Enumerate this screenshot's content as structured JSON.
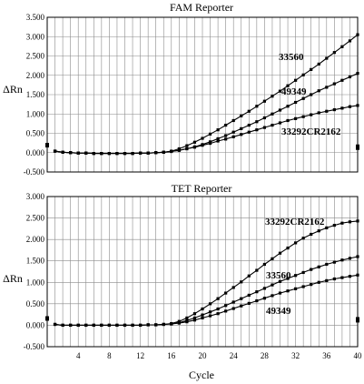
{
  "chart_data": [
    {
      "type": "line",
      "title": "FAM Reporter",
      "xlabel": "",
      "ylabel": "ΔRn",
      "xlim": [
        0,
        40
      ],
      "ylim": [
        -0.5,
        3.5
      ],
      "yticks": [
        "3.500",
        "3.000",
        "2.500",
        "2.000",
        "1.500",
        "1.000",
        "0.500",
        "0.000",
        "-0.500"
      ],
      "xticks": [],
      "grid": true,
      "series": [
        {
          "name": "33560",
          "x": [
            1,
            2,
            3,
            4,
            5,
            6,
            7,
            8,
            9,
            10,
            11,
            12,
            13,
            14,
            15,
            16,
            17,
            18,
            19,
            20,
            21,
            22,
            23,
            24,
            25,
            26,
            27,
            28,
            29,
            30,
            31,
            32,
            33,
            34,
            35,
            36,
            37,
            38,
            39,
            40
          ],
          "values": [
            0.04,
            0.01,
            0.0,
            -0.01,
            -0.01,
            -0.02,
            -0.02,
            -0.02,
            -0.02,
            -0.02,
            -0.02,
            -0.01,
            -0.01,
            0.0,
            0.01,
            0.04,
            0.1,
            0.18,
            0.27,
            0.37,
            0.48,
            0.59,
            0.71,
            0.83,
            0.95,
            1.07,
            1.2,
            1.33,
            1.46,
            1.59,
            1.73,
            1.87,
            2.01,
            2.15,
            2.29,
            2.44,
            2.59,
            2.74,
            2.89,
            3.05
          ]
        },
        {
          "name": "49349",
          "x": [
            1,
            2,
            3,
            4,
            5,
            6,
            7,
            8,
            9,
            10,
            11,
            12,
            13,
            14,
            15,
            16,
            17,
            18,
            19,
            20,
            21,
            22,
            23,
            24,
            25,
            26,
            27,
            28,
            29,
            30,
            31,
            32,
            33,
            34,
            35,
            36,
            37,
            38,
            39,
            40
          ],
          "values": [
            0.04,
            0.01,
            0.0,
            -0.01,
            -0.01,
            -0.02,
            -0.02,
            -0.02,
            -0.02,
            -0.02,
            -0.02,
            -0.01,
            -0.01,
            0.0,
            0.01,
            0.03,
            0.06,
            0.1,
            0.15,
            0.21,
            0.28,
            0.36,
            0.44,
            0.53,
            0.62,
            0.71,
            0.8,
            0.9,
            1.0,
            1.1,
            1.2,
            1.3,
            1.4,
            1.5,
            1.6,
            1.69,
            1.78,
            1.87,
            1.96,
            2.05
          ]
        },
        {
          "name": "33292CR2162",
          "x": [
            1,
            2,
            3,
            4,
            5,
            6,
            7,
            8,
            9,
            10,
            11,
            12,
            13,
            14,
            15,
            16,
            17,
            18,
            19,
            20,
            21,
            22,
            23,
            24,
            25,
            26,
            27,
            28,
            29,
            30,
            31,
            32,
            33,
            34,
            35,
            36,
            37,
            38,
            39,
            40
          ],
          "values": [
            0.04,
            0.01,
            0.0,
            -0.01,
            -0.01,
            -0.02,
            -0.02,
            -0.02,
            -0.02,
            -0.02,
            -0.02,
            -0.01,
            -0.01,
            0.0,
            0.01,
            0.03,
            0.06,
            0.1,
            0.14,
            0.19,
            0.24,
            0.3,
            0.35,
            0.41,
            0.47,
            0.53,
            0.59,
            0.65,
            0.71,
            0.77,
            0.83,
            0.88,
            0.93,
            0.98,
            1.03,
            1.07,
            1.11,
            1.15,
            1.19,
            1.22
          ]
        }
      ],
      "annotations": [
        "33560",
        "49349",
        "33292CR2162"
      ]
    },
    {
      "type": "line",
      "title": "TET Reporter",
      "xlabel": "Cycle",
      "ylabel": "ΔRn",
      "xlim": [
        0,
        40
      ],
      "ylim": [
        -0.5,
        3.0
      ],
      "yticks": [
        "3.000",
        "2.500",
        "2.000",
        "1.500",
        "1.000",
        "0.500",
        "0.000",
        "-0.500"
      ],
      "xticks": [
        "4",
        "8",
        "12",
        "16",
        "20",
        "24",
        "28",
        "32",
        "36",
        "40"
      ],
      "grid": true,
      "series": [
        {
          "name": "33292CR2162",
          "x": [
            1,
            2,
            3,
            4,
            5,
            6,
            7,
            8,
            9,
            10,
            11,
            12,
            13,
            14,
            15,
            16,
            17,
            18,
            19,
            20,
            21,
            22,
            23,
            24,
            25,
            26,
            27,
            28,
            29,
            30,
            31,
            32,
            33,
            34,
            35,
            36,
            37,
            38,
            39,
            40
          ],
          "values": [
            0.02,
            0.0,
            0.0,
            0.0,
            0.0,
            0.0,
            0.0,
            0.0,
            0.0,
            0.0,
            0.0,
            0.0,
            0.01,
            0.01,
            0.02,
            0.04,
            0.09,
            0.17,
            0.27,
            0.38,
            0.5,
            0.62,
            0.75,
            0.88,
            1.01,
            1.15,
            1.28,
            1.42,
            1.55,
            1.68,
            1.8,
            1.92,
            2.03,
            2.12,
            2.2,
            2.27,
            2.33,
            2.38,
            2.41,
            2.43
          ]
        },
        {
          "name": "33560",
          "x": [
            1,
            2,
            3,
            4,
            5,
            6,
            7,
            8,
            9,
            10,
            11,
            12,
            13,
            14,
            15,
            16,
            17,
            18,
            19,
            20,
            21,
            22,
            23,
            24,
            25,
            26,
            27,
            28,
            29,
            30,
            31,
            32,
            33,
            34,
            35,
            36,
            37,
            38,
            39,
            40
          ],
          "values": [
            0.02,
            0.0,
            0.0,
            0.0,
            0.0,
            0.0,
            0.0,
            0.0,
            0.0,
            0.0,
            0.0,
            0.0,
            0.01,
            0.01,
            0.02,
            0.03,
            0.06,
            0.11,
            0.17,
            0.24,
            0.31,
            0.38,
            0.46,
            0.54,
            0.62,
            0.7,
            0.78,
            0.86,
            0.94,
            1.02,
            1.09,
            1.16,
            1.23,
            1.3,
            1.36,
            1.42,
            1.47,
            1.52,
            1.56,
            1.6
          ]
        },
        {
          "name": "49349",
          "x": [
            1,
            2,
            3,
            4,
            5,
            6,
            7,
            8,
            9,
            10,
            11,
            12,
            13,
            14,
            15,
            16,
            17,
            18,
            19,
            20,
            21,
            22,
            23,
            24,
            25,
            26,
            27,
            28,
            29,
            30,
            31,
            32,
            33,
            34,
            35,
            36,
            37,
            38,
            39,
            40
          ],
          "values": [
            0.02,
            0.0,
            0.0,
            0.0,
            0.0,
            0.0,
            0.0,
            0.0,
            0.0,
            0.0,
            0.0,
            0.0,
            0.01,
            0.01,
            0.02,
            0.03,
            0.05,
            0.08,
            0.12,
            0.17,
            0.22,
            0.27,
            0.33,
            0.39,
            0.45,
            0.51,
            0.57,
            0.63,
            0.69,
            0.75,
            0.8,
            0.85,
            0.9,
            0.95,
            1.0,
            1.04,
            1.08,
            1.11,
            1.14,
            1.17
          ]
        }
      ],
      "annotations": [
        "33292CR2162",
        "33560",
        "49349"
      ]
    }
  ]
}
